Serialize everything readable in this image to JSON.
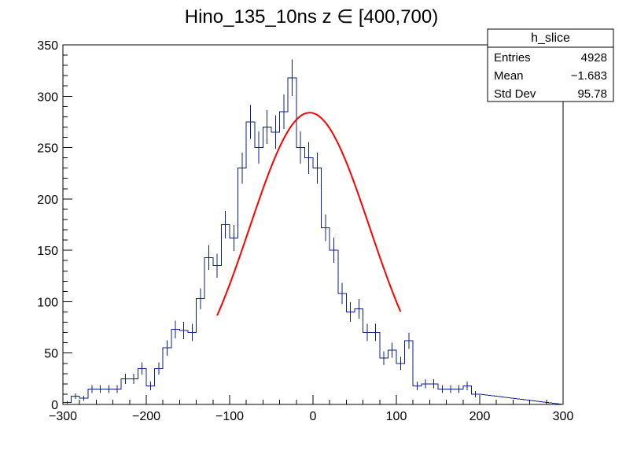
{
  "chart_data": {
    "type": "histogram",
    "title": "Hino_135_10ns z  ∈ [400,700)",
    "xlim": [
      -300,
      300
    ],
    "ylim": [
      0,
      350
    ],
    "bin_width": 10,
    "x_ticks": [
      -300,
      -200,
      -100,
      0,
      100,
      200,
      300
    ],
    "y_ticks": [
      0,
      50,
      100,
      150,
      200,
      250,
      300,
      350
    ],
    "series": [
      {
        "values": [
          2,
          8,
          6,
          15,
          15,
          15,
          15,
          25,
          25,
          35,
          18,
          35,
          55,
          73,
          72,
          70,
          103,
          143,
          135,
          175,
          162,
          230,
          275,
          250,
          270,
          265,
          285,
          318,
          250,
          240,
          230,
          172,
          150,
          108,
          90,
          93,
          70,
          70,
          45,
          53,
          40,
          62,
          18,
          20,
          20,
          15,
          15,
          15,
          18,
          10
        ]
      }
    ],
    "fit": {
      "type": "gaussian",
      "amplitude": 284,
      "mean": -4,
      "sigma": 72,
      "range": [
        -115,
        105
      ],
      "color": "#ff0000"
    },
    "stats_box": {
      "title": "h_slice",
      "rows": [
        {
          "label": "Entries",
          "value": "4928"
        },
        {
          "label": "Mean",
          "value": "−1.683"
        },
        {
          "label": "Std Dev",
          "value": "95.78"
        }
      ]
    },
    "histogram_color": "#0b1f8a",
    "grid": false
  }
}
